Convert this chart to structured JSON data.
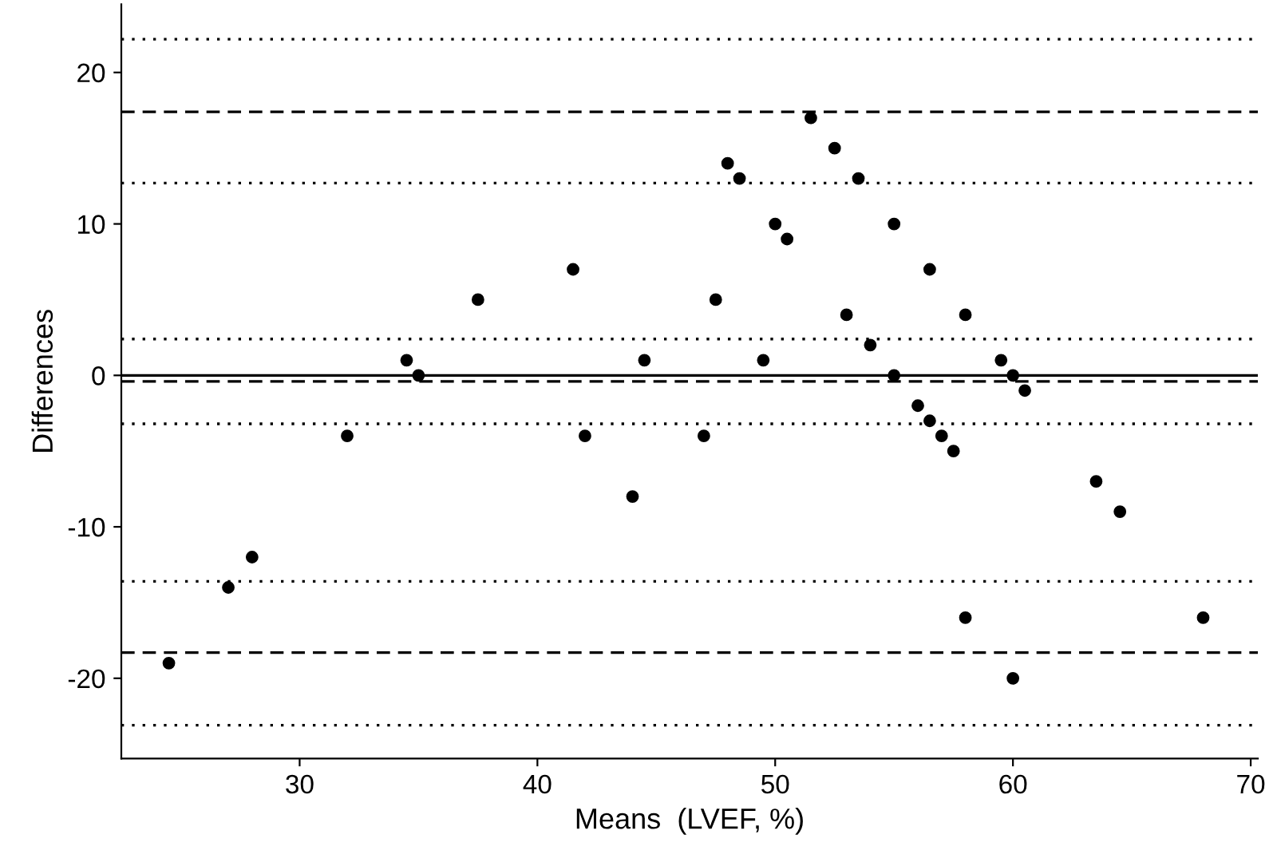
{
  "chart_data": {
    "type": "scatter",
    "xlabel": "Means  (LVEF, %)",
    "ylabel": "Differences",
    "x": [
      24.5,
      27,
      28,
      32,
      34.5,
      35,
      37.5,
      41.5,
      42,
      44,
      44.5,
      47,
      47.5,
      48,
      48.5,
      49.5,
      50,
      50.5,
      51.5,
      52.5,
      53,
      53.5,
      54,
      55,
      55,
      56,
      56.5,
      56.5,
      57,
      57.5,
      58,
      58,
      59.5,
      60,
      60.5,
      60,
      63.5,
      64.5,
      68
    ],
    "series": [
      {
        "color": "#000000",
        "values": [
          -19,
          -14,
          -12,
          -4,
          1,
          0,
          5,
          7,
          -4,
          -8,
          1,
          -4,
          5,
          14,
          13,
          1,
          10,
          9,
          17,
          15,
          4,
          13,
          2,
          10,
          0,
          -2,
          7,
          -3,
          -4,
          -5,
          4,
          -16,
          1,
          0,
          -1,
          -20,
          -7,
          -9,
          -16
        ]
      }
    ],
    "xlim": [
      22.5,
      70.3
    ],
    "ylim": [
      -25.3,
      24.5
    ],
    "xticks": [
      30,
      40,
      50,
      60,
      70
    ],
    "yticks": [
      -20,
      -10,
      0,
      10,
      20
    ],
    "marker": "circle",
    "grid": false,
    "ref_lines": [
      {
        "axis": "y",
        "value": 22.2,
        "line_style": "dotted",
        "color": "#000000"
      },
      {
        "axis": "y",
        "value": 17.4,
        "line_style": "dashed",
        "color": "#000000"
      },
      {
        "axis": "y",
        "value": 12.7,
        "line_style": "dotted",
        "color": "#000000"
      },
      {
        "axis": "y",
        "value": 2.4,
        "line_style": "dotted",
        "color": "#000000"
      },
      {
        "axis": "y",
        "value": 0,
        "line_style": "solid",
        "color": "#000000"
      },
      {
        "axis": "y",
        "value": -0.4,
        "line_style": "dashed",
        "color": "#000000"
      },
      {
        "axis": "y",
        "value": -3.2,
        "line_style": "dotted",
        "color": "#000000"
      },
      {
        "axis": "y",
        "value": -13.6,
        "line_style": "dotted",
        "color": "#000000"
      },
      {
        "axis": "y",
        "value": -18.3,
        "line_style": "dashed",
        "color": "#000000"
      },
      {
        "axis": "y",
        "value": -23.1,
        "line_style": "dotted",
        "color": "#000000"
      }
    ]
  }
}
